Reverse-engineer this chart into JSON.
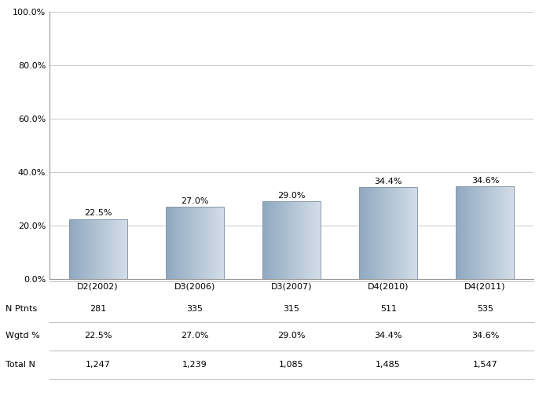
{
  "categories": [
    "D2(2002)",
    "D3(2006)",
    "D3(2007)",
    "D4(2010)",
    "D4(2011)"
  ],
  "values": [
    22.5,
    27.0,
    29.0,
    34.4,
    34.6
  ],
  "n_ptnts": [
    "281",
    "335",
    "315",
    "511",
    "535"
  ],
  "wgtd_pct": [
    "22.5%",
    "27.0%",
    "29.0%",
    "34.4%",
    "34.6%"
  ],
  "total_n": [
    "1,247",
    "1,239",
    "1,085",
    "1,485",
    "1,547"
  ],
  "ylim": [
    0,
    100
  ],
  "yticks": [
    0,
    20,
    40,
    60,
    80,
    100
  ],
  "ytick_labels": [
    "0.0%",
    "20.0%",
    "40.0%",
    "60.0%",
    "80.0%",
    "100.0%"
  ],
  "grid_color": "#cccccc",
  "background_color": "#ffffff",
  "label_fontsize": 8.0,
  "tick_fontsize": 8.0,
  "table_fontsize": 8.0,
  "bar_width": 0.6,
  "row_labels": [
    "N Ptnts",
    "Wgtd %",
    "Total N"
  ]
}
